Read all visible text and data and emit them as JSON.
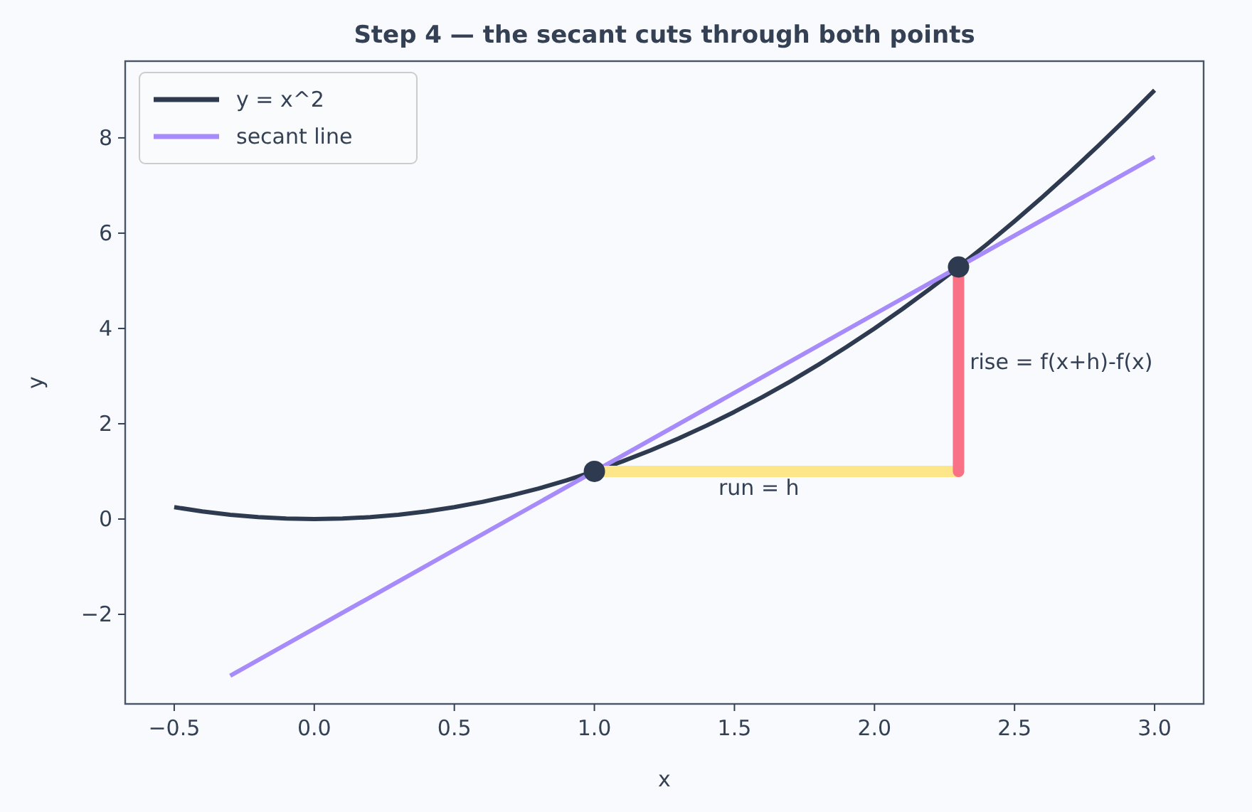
{
  "chart_data": {
    "type": "line",
    "title": "Step 4 — the secant cuts through both points",
    "xlabel": "x",
    "ylabel": "y",
    "xlim": [
      -0.675,
      3.175
    ],
    "ylim": [
      -3.88,
      9.61
    ],
    "xticks": [
      {
        "value": -0.5,
        "label": "−0.5"
      },
      {
        "value": 0,
        "label": "0.0"
      },
      {
        "value": 0.5,
        "label": "0.5"
      },
      {
        "value": 1,
        "label": "1.0"
      },
      {
        "value": 1.5,
        "label": "1.5"
      },
      {
        "value": 2,
        "label": "2.0"
      },
      {
        "value": 2.5,
        "label": "2.5"
      },
      {
        "value": 3,
        "label": "3.0"
      }
    ],
    "yticks": [
      {
        "value": -2,
        "label": "−2"
      },
      0,
      2,
      4,
      6,
      8
    ],
    "grid": false,
    "legend": "top left",
    "series": [
      {
        "name": "y = x^2",
        "color": "#2e3a4f",
        "x": [
          -0.5,
          -0.4,
          -0.3,
          -0.2,
          -0.1,
          0,
          0.1,
          0.2,
          0.3,
          0.4,
          0.5,
          0.6,
          0.7,
          0.8,
          0.9,
          1,
          1.1,
          1.2,
          1.3,
          1.4,
          1.5,
          1.6,
          1.7,
          1.8,
          1.9,
          2,
          2.1,
          2.2,
          2.3,
          2.4,
          2.5,
          2.6,
          2.7,
          2.8,
          2.9,
          3
        ],
        "values": [
          0.25,
          0.16,
          0.09,
          0.04,
          0.01,
          0,
          0.01,
          0.04,
          0.09,
          0.16,
          0.25,
          0.36,
          0.49,
          0.64,
          0.81,
          1,
          1.21,
          1.44,
          1.69,
          1.96,
          2.25,
          2.56,
          2.89,
          3.24,
          3.61,
          4,
          4.41,
          4.84,
          5.29,
          5.76,
          6.25,
          6.76,
          7.29,
          7.84,
          8.41,
          9
        ]
      },
      {
        "name": "secant line",
        "color": "#a78bfa",
        "x": [
          -0.3,
          3
        ],
        "values": [
          -3.29,
          7.6
        ]
      },
      {
        "type": "line",
        "color": "#fde58a",
        "x": [
          1,
          2.3
        ],
        "values": [
          1,
          1
        ]
      },
      {
        "type": "line",
        "color": "#f87186",
        "x": [
          2.3,
          2.3
        ],
        "values": [
          1,
          5.29
        ]
      },
      {
        "type": "scatter",
        "marker": "circle",
        "color": "#2e3a4f",
        "x": [
          1,
          2.3
        ],
        "values": [
          1,
          5.29
        ]
      }
    ],
    "annotations": [
      "run = h",
      {
        "text": "rise = f(x+h)-f(x)",
        "x": 2.34,
        "y": 3.3
      }
    ]
  }
}
